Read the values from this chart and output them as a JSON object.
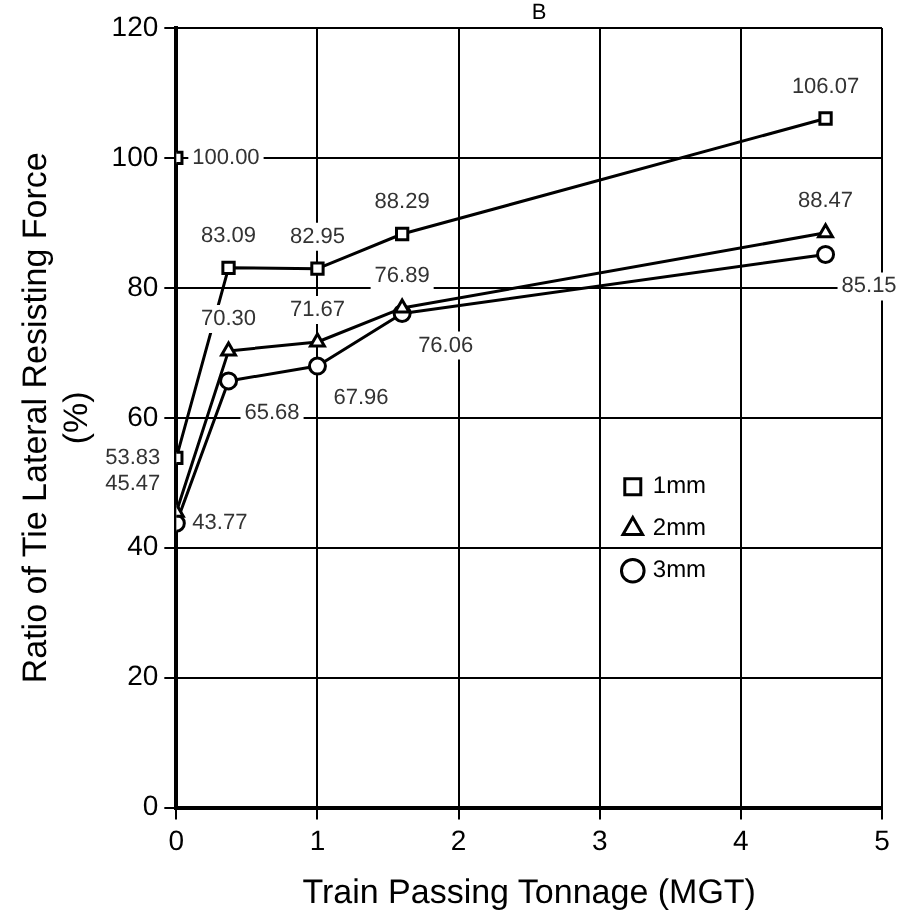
{
  "chart_data": {
    "type": "line",
    "xlabel": "Train Passing Tonnage (MGT)",
    "ylabel": "Ratio of Tie Lateral Resisting Force\n(%)",
    "xlim": [
      0,
      5
    ],
    "xticks": [
      0,
      1,
      2,
      3,
      4,
      5
    ],
    "ylim": [
      0,
      120
    ],
    "yticks": [
      0,
      20,
      40,
      60,
      80,
      100,
      120
    ],
    "grid": true,
    "legend": "center right",
    "line_style": "solid",
    "annotations": [
      "B"
    ],
    "series": [
      {
        "name": "1mm",
        "color": "#000000",
        "marker": "square",
        "x": [
          0,
          0.37,
          1,
          1.6,
          4.6
        ],
        "values": [
          53.83,
          83.09,
          82.95,
          88.29,
          106.07
        ],
        "value_labels": [
          "53.83",
          "83.09",
          "82.95",
          "88.29",
          "106.07"
        ]
      },
      {
        "name": "2mm",
        "color": "#000000",
        "marker": "triangle",
        "x": [
          0,
          0.37,
          1,
          1.6,
          4.6
        ],
        "values": [
          45.47,
          70.3,
          71.67,
          76.89,
          88.47
        ],
        "value_labels": [
          "45.47",
          "70.30",
          "71.67",
          "76.89",
          "88.47"
        ]
      },
      {
        "name": "3mm",
        "color": "#000000",
        "marker": "circle",
        "x": [
          0,
          0.37,
          1,
          1.6,
          4.6
        ],
        "values": [
          43.77,
          65.68,
          67.96,
          76.06,
          85.15
        ],
        "value_labels": [
          "43.77",
          "65.68",
          "67.96",
          "76.06",
          "85.15"
        ]
      },
      {
        "type": "scatter",
        "color": "#000000",
        "marker": "square",
        "x": [
          0
        ],
        "values": [
          100
        ],
        "value_labels": [
          "100.00"
        ]
      }
    ]
  }
}
